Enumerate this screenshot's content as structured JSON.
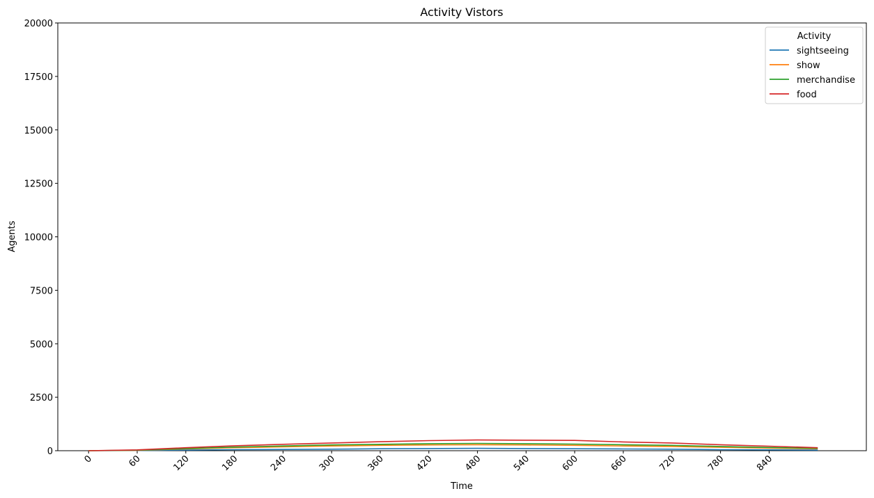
{
  "chart_data": {
    "type": "line",
    "title": "Activity Vistors",
    "xlabel": "Time",
    "ylabel": "Agents",
    "xlim": [
      -38,
      960
    ],
    "ylim": [
      0,
      20000
    ],
    "x_ticks": [
      0,
      60,
      120,
      180,
      240,
      300,
      360,
      420,
      480,
      540,
      600,
      660,
      720,
      780,
      840
    ],
    "y_ticks": [
      0,
      2500,
      5000,
      7500,
      10000,
      12500,
      15000,
      17500,
      20000
    ],
    "grid": false,
    "legend": {
      "title": "Activity",
      "placement": "top-right"
    },
    "x": [
      0,
      60,
      120,
      180,
      240,
      300,
      360,
      420,
      480,
      540,
      600,
      660,
      720,
      780,
      840,
      900
    ],
    "series": [
      {
        "name": "sightseeing",
        "color": "#1f77b4",
        "values": [
          0,
          10,
          30,
          50,
          60,
          70,
          90,
          100,
          110,
          100,
          90,
          80,
          70,
          50,
          40,
          30
        ]
      },
      {
        "name": "show",
        "color": "#ff7f0e",
        "values": [
          0,
          20,
          80,
          140,
          180,
          220,
          250,
          270,
          280,
          270,
          250,
          220,
          200,
          160,
          120,
          90
        ]
      },
      {
        "name": "merchandise",
        "color": "#2ca02c",
        "values": [
          0,
          25,
          100,
          170,
          220,
          270,
          300,
          330,
          340,
          330,
          310,
          280,
          250,
          200,
          150,
          110
        ]
      },
      {
        "name": "food",
        "color": "#d62728",
        "values": [
          0,
          40,
          140,
          230,
          300,
          360,
          420,
          470,
          500,
          490,
          480,
          410,
          360,
          280,
          210,
          140
        ]
      }
    ]
  }
}
